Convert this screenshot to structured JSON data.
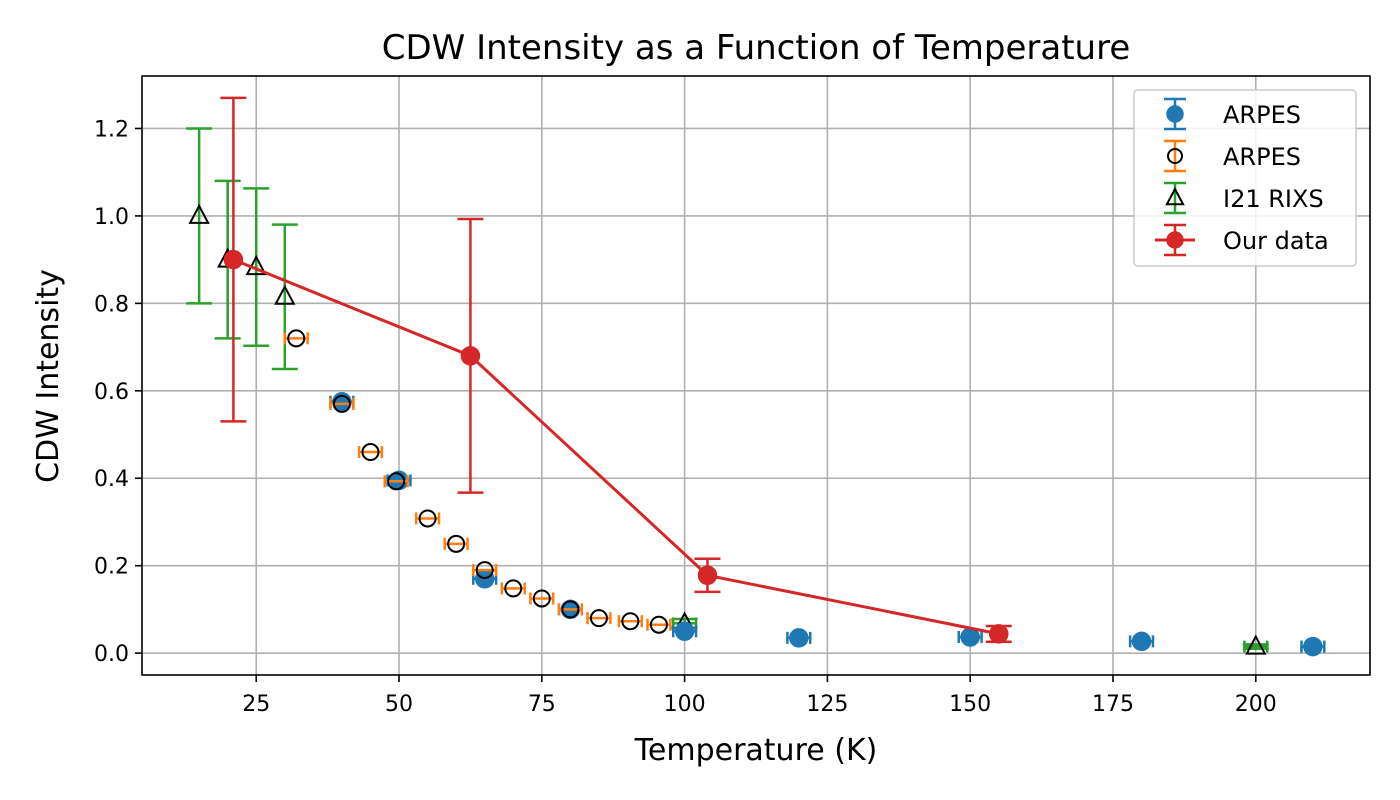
{
  "chart_data": {
    "type": "scatter",
    "title": "CDW Intensity as a Function of Temperature",
    "xlabel": "Temperature (K)",
    "ylabel": "CDW Intensity",
    "xlim": [
      5,
      220
    ],
    "ylim": [
      -0.05,
      1.32
    ],
    "xticks": [
      25,
      50,
      75,
      100,
      125,
      150,
      175,
      200
    ],
    "yticks": [
      0.0,
      0.2,
      0.4,
      0.6,
      0.8,
      1.0,
      1.2
    ],
    "grid": true,
    "legend_position": "top-right",
    "series": [
      {
        "name": "ARPES",
        "kind": "errorbar",
        "marker": "circle-filled",
        "color": "#1f77b4",
        "x": [
          40,
          50,
          65,
          80,
          100,
          120,
          150,
          180,
          210
        ],
        "y": [
          0.575,
          0.395,
          0.17,
          0.1,
          0.05,
          0.035,
          0.037,
          0.027,
          0.015
        ],
        "xerr": [
          2,
          2,
          2,
          2,
          2,
          2,
          2,
          2,
          2
        ]
      },
      {
        "name": "ARPES",
        "kind": "errorbar",
        "marker": "circle-open",
        "color": "#ff7f0e",
        "x": [
          32,
          40,
          45,
          49.5,
          55,
          60,
          65,
          70,
          75,
          80,
          85,
          90.5,
          95.5
        ],
        "y": [
          0.72,
          0.57,
          0.46,
          0.393,
          0.308,
          0.25,
          0.19,
          0.148,
          0.125,
          0.1,
          0.08,
          0.073,
          0.065
        ],
        "xerr": [
          2,
          2,
          2,
          2,
          2,
          2,
          2,
          2,
          2,
          2,
          2,
          2,
          2
        ]
      },
      {
        "name": "I21 RIXS",
        "kind": "errorbar",
        "marker": "triangle-open",
        "color": "#2ca02c",
        "x": [
          15,
          20,
          25,
          30,
          100,
          200
        ],
        "y": [
          1.0,
          0.9,
          0.883,
          0.815,
          0.068,
          0.015
        ],
        "yerr": [
          0.2,
          0.18,
          0.18,
          0.165,
          0.01,
          0.005
        ],
        "xerr": [
          0,
          0,
          0,
          0,
          2,
          2
        ]
      },
      {
        "name": "Our data",
        "kind": "line-errorbar",
        "marker": "circle-filled",
        "color": "#d62728",
        "x": [
          21,
          62.5,
          104,
          155
        ],
        "y": [
          0.9,
          0.68,
          0.178,
          0.044
        ],
        "yerr": [
          0.37,
          0.313,
          0.038,
          0.018
        ]
      }
    ]
  }
}
